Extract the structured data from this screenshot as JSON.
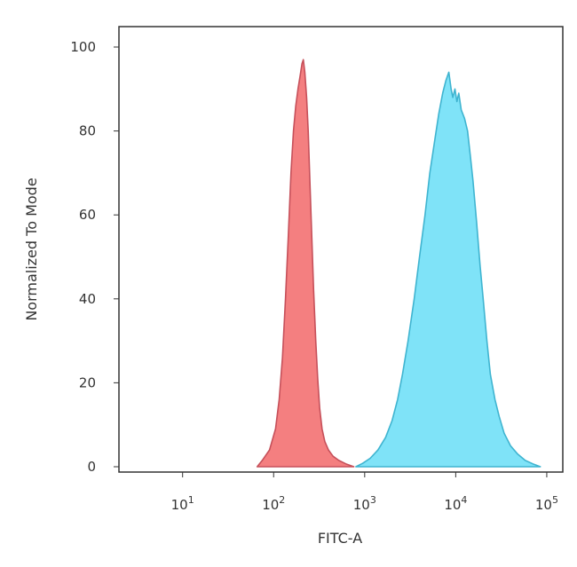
{
  "chart_data": {
    "type": "area",
    "title": "",
    "xlabel": "FITC-A",
    "ylabel": "Normalized To Mode",
    "x_scale": "log",
    "xlim": [
      2,
      150000
    ],
    "ylim": [
      0,
      105
    ],
    "grid": false,
    "legend": "none",
    "y_ticks": [
      {
        "value": 0,
        "label": "0"
      },
      {
        "value": 20,
        "label": "20"
      },
      {
        "value": 40,
        "label": "40"
      },
      {
        "value": 60,
        "label": "60"
      },
      {
        "value": 80,
        "label": "80"
      },
      {
        "value": 100,
        "label": "100"
      }
    ],
    "x_ticks": [
      {
        "value": 10,
        "base": "10",
        "exp": "1"
      },
      {
        "value": 100,
        "base": "10",
        "exp": "2"
      },
      {
        "value": 1000,
        "base": "10",
        "exp": "3"
      },
      {
        "value": 10000,
        "base": "10",
        "exp": "4"
      },
      {
        "value": 100000,
        "base": "10",
        "exp": "5"
      }
    ],
    "series": [
      {
        "fill": "#f47f80",
        "stroke": "#c6505a",
        "points": [
          [
            66,
            0
          ],
          [
            75,
            1.5
          ],
          [
            90,
            4
          ],
          [
            105,
            9
          ],
          [
            115,
            16
          ],
          [
            125,
            26
          ],
          [
            135,
            40
          ],
          [
            145,
            55
          ],
          [
            155,
            70
          ],
          [
            165,
            80
          ],
          [
            175,
            86
          ],
          [
            185,
            90
          ],
          [
            195,
            93
          ],
          [
            205,
            96
          ],
          [
            212,
            97
          ],
          [
            220,
            94
          ],
          [
            230,
            88
          ],
          [
            240,
            80
          ],
          [
            250,
            68
          ],
          [
            262,
            55
          ],
          [
            275,
            42
          ],
          [
            290,
            30
          ],
          [
            305,
            21
          ],
          [
            320,
            14
          ],
          [
            340,
            9
          ],
          [
            365,
            6
          ],
          [
            400,
            4
          ],
          [
            450,
            2.5
          ],
          [
            520,
            1.5
          ],
          [
            620,
            0.7
          ],
          [
            760,
            0
          ]
        ]
      },
      {
        "fill": "#7fe3f8",
        "stroke": "#3fb4d0",
        "points": [
          [
            800,
            0
          ],
          [
            950,
            0.8
          ],
          [
            1150,
            2
          ],
          [
            1400,
            4
          ],
          [
            1700,
            7
          ],
          [
            2000,
            11
          ],
          [
            2300,
            16
          ],
          [
            2600,
            22
          ],
          [
            3000,
            30
          ],
          [
            3500,
            40
          ],
          [
            4000,
            50
          ],
          [
            4600,
            60
          ],
          [
            5200,
            70
          ],
          [
            5900,
            78
          ],
          [
            6500,
            84
          ],
          [
            7200,
            89
          ],
          [
            7800,
            92
          ],
          [
            8400,
            94
          ],
          [
            8900,
            90
          ],
          [
            9300,
            88
          ],
          [
            9800,
            90
          ],
          [
            10300,
            87
          ],
          [
            10800,
            89
          ],
          [
            11500,
            85
          ],
          [
            12500,
            83
          ],
          [
            13500,
            80
          ],
          [
            14500,
            74
          ],
          [
            15500,
            68
          ],
          [
            17000,
            58
          ],
          [
            18500,
            48
          ],
          [
            20000,
            40
          ],
          [
            22000,
            30
          ],
          [
            24000,
            22
          ],
          [
            27000,
            16
          ],
          [
            30000,
            12
          ],
          [
            34000,
            8
          ],
          [
            40000,
            5
          ],
          [
            48000,
            3
          ],
          [
            58000,
            1.5
          ],
          [
            70000,
            0.7
          ],
          [
            85000,
            0
          ]
        ]
      }
    ]
  }
}
